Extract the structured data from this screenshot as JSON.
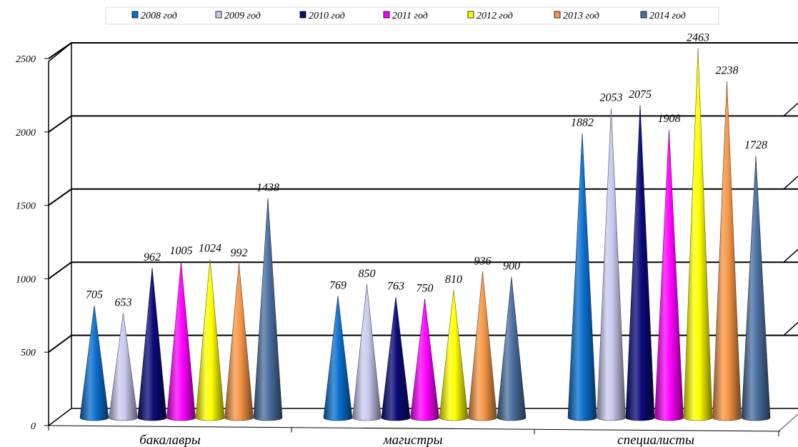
{
  "chart_data": {
    "type": "bar",
    "style": "3d-cones",
    "categories": [
      "бакалавры",
      "магистры",
      "специалисты"
    ],
    "series": [
      {
        "name": "2008 год",
        "color": "#0a6fcf",
        "values": [
          705,
          769,
          1882
        ]
      },
      {
        "name": "2009 год",
        "color": "#c9c9ef",
        "values": [
          653,
          850,
          2053
        ]
      },
      {
        "name": "2010 год",
        "color": "#0a0a78",
        "values": [
          962,
          763,
          2075
        ]
      },
      {
        "name": "2011 год",
        "color": "#ff00ff",
        "values": [
          1005,
          750,
          1908
        ]
      },
      {
        "name": "2012 год",
        "color": "#ffff00",
        "values": [
          1024,
          810,
          2463
        ]
      },
      {
        "name": "2013 год",
        "color": "#f79646",
        "values": [
          992,
          936,
          2238
        ]
      },
      {
        "name": "2014 год",
        "color": "#4a6fa0",
        "values": [
          1438,
          900,
          1728
        ]
      }
    ],
    "yticks": [
      "0",
      "500",
      "1000",
      "1500",
      "2000",
      "2500"
    ],
    "ylim": [
      0,
      2500
    ],
    "grid": true,
    "legend": "top"
  }
}
